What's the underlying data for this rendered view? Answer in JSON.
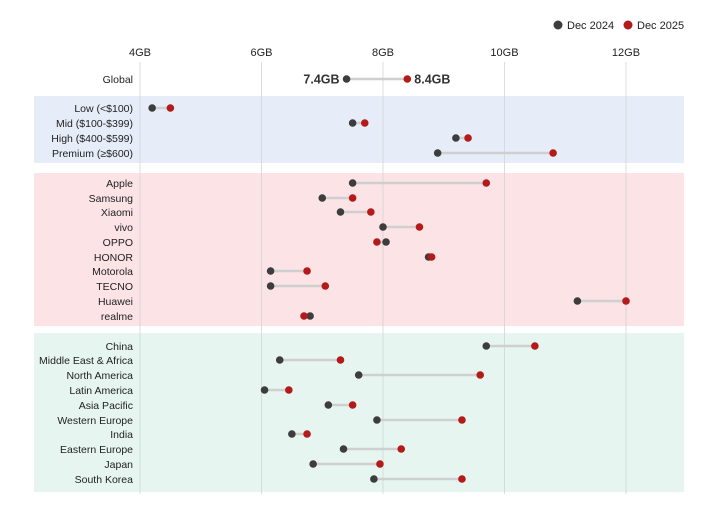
{
  "chart_data": {
    "type": "dumbbell",
    "x_unit": "GB",
    "xlim": [
      4,
      12
    ],
    "x_ticks": [
      {
        "value": 4,
        "label": "4GB"
      },
      {
        "value": 6,
        "label": "6GB"
      },
      {
        "value": 8,
        "label": "8GB"
      },
      {
        "value": 10,
        "label": "10GB"
      },
      {
        "value": 12,
        "label": "12GB"
      }
    ],
    "grid": true,
    "legend": {
      "position": "top-right",
      "entries": [
        {
          "name": "Dec 2024",
          "color": "#3d3d3d"
        },
        {
          "name": "Dec 2025",
          "color": "#b51a1a"
        }
      ]
    },
    "group_colors": {
      "price": "#e6edf8",
      "brand": "#fbe3e6",
      "region": "#e6f5ef"
    },
    "rows": [
      {
        "label": "Global",
        "group": "global",
        "dec2024": 7.4,
        "dec2025": 8.4,
        "label_2024": "7.4GB",
        "label_2025": "8.4GB"
      },
      {
        "label": "Low (<$100)",
        "group": "price",
        "dec2024": 4.2,
        "dec2025": 4.5
      },
      {
        "label": "Mid ($100-$399)",
        "group": "price",
        "dec2024": 7.5,
        "dec2025": 7.7
      },
      {
        "label": "High ($400-$599)",
        "group": "price",
        "dec2024": 9.2,
        "dec2025": 9.4
      },
      {
        "label": "Premium (≥$600)",
        "group": "price",
        "dec2024": 8.9,
        "dec2025": 10.8
      },
      {
        "label": "Apple",
        "group": "brand",
        "dec2024": 7.5,
        "dec2025": 9.7
      },
      {
        "label": "Samsung",
        "group": "brand",
        "dec2024": 7.0,
        "dec2025": 7.5
      },
      {
        "label": "Xiaomi",
        "group": "brand",
        "dec2024": 7.3,
        "dec2025": 7.8
      },
      {
        "label": "vivo",
        "group": "brand",
        "dec2024": 8.0,
        "dec2025": 8.6
      },
      {
        "label": "OPPO",
        "group": "brand",
        "dec2024": 8.05,
        "dec2025": 7.9
      },
      {
        "label": "HONOR",
        "group": "brand",
        "dec2024": 8.75,
        "dec2025": 8.8
      },
      {
        "label": "Motorola",
        "group": "brand",
        "dec2024": 6.15,
        "dec2025": 6.75
      },
      {
        "label": "TECNO",
        "group": "brand",
        "dec2024": 6.15,
        "dec2025": 7.05
      },
      {
        "label": "Huawei",
        "group": "brand",
        "dec2024": 11.2,
        "dec2025": 12.0
      },
      {
        "label": "realme",
        "group": "brand",
        "dec2024": 6.8,
        "dec2025": 6.7
      },
      {
        "label": "China",
        "group": "region",
        "dec2024": 9.7,
        "dec2025": 10.5
      },
      {
        "label": "Middle East & Africa",
        "group": "region",
        "dec2024": 6.3,
        "dec2025": 7.3
      },
      {
        "label": "North America",
        "group": "region",
        "dec2024": 7.6,
        "dec2025": 9.6
      },
      {
        "label": "Latin America",
        "group": "region",
        "dec2024": 6.05,
        "dec2025": 6.45
      },
      {
        "label": "Asia Pacific",
        "group": "region",
        "dec2024": 7.1,
        "dec2025": 7.5
      },
      {
        "label": "Western Europe",
        "group": "region",
        "dec2024": 7.9,
        "dec2025": 9.3
      },
      {
        "label": "India",
        "group": "region",
        "dec2024": 6.5,
        "dec2025": 6.75
      },
      {
        "label": "Eastern Europe",
        "group": "region",
        "dec2024": 7.35,
        "dec2025": 8.3
      },
      {
        "label": "Japan",
        "group": "region",
        "dec2024": 6.85,
        "dec2025": 7.95
      },
      {
        "label": "South Korea",
        "group": "region",
        "dec2024": 7.85,
        "dec2025": 9.3
      }
    ]
  }
}
